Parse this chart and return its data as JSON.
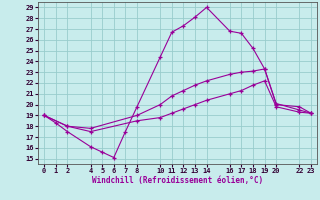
{
  "xlabel": "Windchill (Refroidissement éolien,°C)",
  "xlim": [
    -0.5,
    23.5
  ],
  "ylim": [
    14.5,
    29.5
  ],
  "xticks": [
    0,
    1,
    2,
    4,
    5,
    6,
    7,
    8,
    10,
    11,
    12,
    13,
    14,
    16,
    17,
    18,
    19,
    20,
    22,
    23
  ],
  "yticks": [
    15,
    16,
    17,
    18,
    19,
    20,
    21,
    22,
    23,
    24,
    25,
    26,
    27,
    28,
    29
  ],
  "bg_color": "#c8ecec",
  "grid_color": "#99cccc",
  "line_color": "#990099",
  "line1_x": [
    0,
    1,
    2,
    4,
    5,
    6,
    7,
    8,
    10,
    11,
    12,
    13,
    14,
    16,
    17,
    18,
    19,
    20,
    22,
    23
  ],
  "line1_y": [
    19.0,
    18.3,
    17.5,
    16.1,
    15.6,
    15.1,
    17.5,
    19.8,
    24.4,
    26.7,
    27.3,
    28.1,
    29.0,
    26.8,
    26.6,
    25.2,
    23.3,
    20.1,
    19.5,
    19.2
  ],
  "line2_x": [
    0,
    2,
    4,
    8,
    10,
    11,
    12,
    13,
    14,
    16,
    17,
    18,
    19,
    20,
    22,
    23
  ],
  "line2_y": [
    19.0,
    18.0,
    17.8,
    19.0,
    20.0,
    20.8,
    21.3,
    21.8,
    22.2,
    22.8,
    23.0,
    23.1,
    23.3,
    20.0,
    19.8,
    19.2
  ],
  "line3_x": [
    0,
    2,
    4,
    8,
    10,
    11,
    12,
    13,
    14,
    16,
    17,
    18,
    19,
    20,
    22,
    23
  ],
  "line3_y": [
    19.0,
    18.0,
    17.5,
    18.5,
    18.8,
    19.2,
    19.6,
    20.0,
    20.4,
    21.0,
    21.3,
    21.8,
    22.2,
    19.8,
    19.3,
    19.2
  ]
}
